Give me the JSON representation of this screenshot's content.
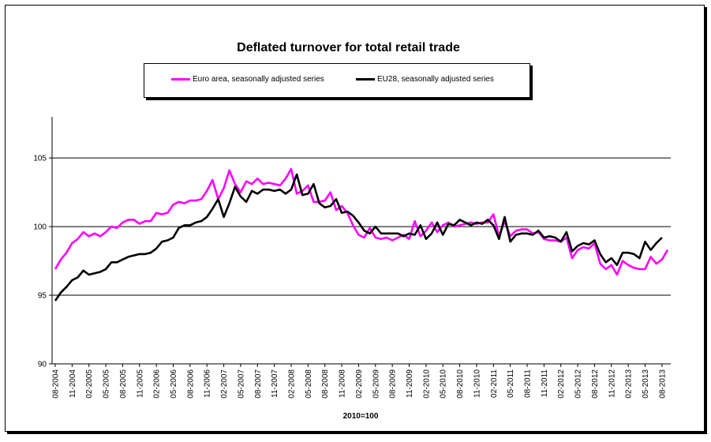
{
  "chart_data": {
    "type": "line",
    "title": "Deflated turnover for total retail trade",
    "xlabel": "2010=100",
    "ylabel": "",
    "ylim": [
      90,
      108
    ],
    "yticks": [
      90,
      95,
      100,
      105
    ],
    "grid": true,
    "legend_position": "top",
    "x_tick_labels": [
      "08-2004",
      "11-2004",
      "02-2005",
      "05-2005",
      "08-2005",
      "11-2005",
      "02-2006",
      "05-2006",
      "08-2006",
      "11-2006",
      "02-2007",
      "05-2007",
      "08-2007",
      "11-2007",
      "02-2008",
      "05-2008",
      "08-2008",
      "11-2008",
      "02-2009",
      "05-2009",
      "08-2009",
      "11-2009",
      "02-2010",
      "05-2010",
      "08-2010",
      "11-2010",
      "02-2011",
      "05-2011",
      "08-2011",
      "11-2011",
      "02-2012",
      "05-2012",
      "08-2012",
      "11-2012",
      "02-2013",
      "05-2013",
      "08-2013"
    ],
    "series": [
      {
        "name": "Euro area, seasonally adjusted series",
        "color": "#ff00ff",
        "values": [
          96.9,
          97.6,
          98.1,
          98.8,
          99.1,
          99.6,
          99.3,
          99.5,
          99.3,
          99.6,
          100.0,
          99.9,
          100.3,
          100.5,
          100.5,
          100.2,
          100.4,
          100.4,
          101.0,
          100.9,
          101.0,
          101.6,
          101.8,
          101.7,
          101.9,
          101.9,
          102.0,
          102.6,
          103.4,
          102.0,
          102.8,
          104.1,
          103.1,
          102.5,
          103.3,
          103.1,
          103.5,
          103.1,
          103.2,
          103.1,
          103.0,
          103.5,
          104.2,
          102.4,
          102.6,
          103.0,
          101.8,
          101.8,
          101.9,
          102.5,
          101.2,
          101.5,
          101.0,
          100.1,
          99.4,
          99.2,
          99.9,
          99.2,
          99.1,
          99.2,
          99.0,
          99.2,
          99.4,
          99.1,
          100.4,
          99.3,
          99.7,
          100.3,
          99.6,
          100.1,
          100.3,
          100.0,
          100.1,
          100.2,
          100.3,
          100.2,
          100.3,
          100.3,
          100.9,
          99.3,
          100.4,
          99.3,
          99.7,
          99.8,
          99.8,
          99.5,
          99.6,
          99.1,
          99.0,
          99.0,
          98.9,
          99.2,
          97.7,
          98.3,
          98.5,
          98.4,
          98.8,
          97.3,
          96.9,
          97.2,
          96.5,
          97.5,
          97.2,
          97.0,
          96.9,
          96.9,
          97.8,
          97.3,
          97.6,
          98.3
        ]
      },
      {
        "name": "EU28, seasonally adjusted series",
        "color": "#000000",
        "values": [
          94.6,
          95.2,
          95.6,
          96.1,
          96.3,
          96.8,
          96.5,
          96.6,
          96.7,
          96.9,
          97.4,
          97.4,
          97.6,
          97.8,
          97.9,
          98.0,
          98.0,
          98.1,
          98.4,
          98.9,
          99.0,
          99.2,
          99.9,
          100.1,
          100.1,
          100.3,
          100.4,
          100.7,
          101.3,
          102.0,
          100.7,
          101.7,
          102.9,
          102.2,
          101.8,
          102.6,
          102.4,
          102.7,
          102.7,
          102.6,
          102.7,
          102.4,
          102.7,
          103.8,
          102.3,
          102.4,
          103.1,
          101.7,
          101.4,
          101.5,
          102.0,
          101.0,
          101.1,
          100.8,
          100.3,
          99.7,
          99.5,
          100.0,
          99.5,
          99.5,
          99.5,
          99.5,
          99.3,
          99.5,
          99.4,
          100.1,
          99.1,
          99.5,
          100.3,
          99.4,
          100.2,
          100.1,
          100.5,
          100.3,
          100.1,
          100.3,
          100.2,
          100.5,
          100.1,
          99.1,
          100.7,
          98.9,
          99.4,
          99.5,
          99.5,
          99.4,
          99.7,
          99.2,
          99.3,
          99.2,
          98.9,
          99.6,
          98.2,
          98.6,
          98.8,
          98.7,
          99.0,
          98.0,
          97.4,
          97.7,
          97.2,
          98.1,
          98.1,
          98.0,
          97.7,
          98.9,
          98.3,
          98.8,
          99.2
        ]
      }
    ]
  }
}
